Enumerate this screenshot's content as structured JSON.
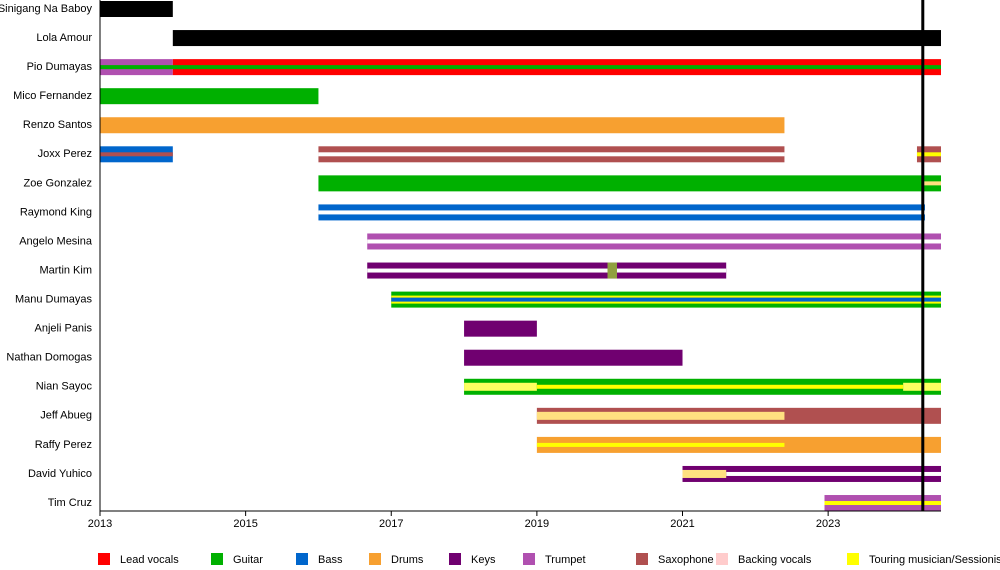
{
  "chart_data": {
    "type": "timeline",
    "xlim": [
      2013,
      2024.55
    ],
    "xticks": [
      2013,
      2015,
      2017,
      2019,
      2021,
      2023
    ],
    "markers": [
      {
        "x": 2024.3,
        "color": "#000000"
      }
    ],
    "members": [
      {
        "name": "Sinigang Na Baboy",
        "segments": [
          {
            "start": 2013,
            "end": 2014,
            "color": "#000000",
            "kind": "bar"
          }
        ]
      },
      {
        "name": "Lola Amour",
        "segments": [
          {
            "start": 2014,
            "end": 2024.55,
            "color": "#000000",
            "kind": "bar"
          }
        ]
      },
      {
        "name": "Pio Dumayas",
        "segments": [
          {
            "start": 2013,
            "end": 2014,
            "color": "#b050b0",
            "kind": "bar"
          },
          {
            "start": 2014,
            "end": 2024.55,
            "color": "#ff0000",
            "kind": "bar"
          },
          {
            "start": 2013,
            "end": 2024.55,
            "color": "#00b000",
            "kind": "line"
          }
        ]
      },
      {
        "name": "Mico Fernandez",
        "segments": [
          {
            "start": 2013,
            "end": 2016,
            "color": "#00b000",
            "kind": "bar"
          }
        ]
      },
      {
        "name": "Renzo Santos",
        "segments": [
          {
            "start": 2013,
            "end": 2022.4,
            "color": "#f7a030",
            "kind": "bar"
          }
        ]
      },
      {
        "name": "Joxx Perez",
        "segments": [
          {
            "start": 2013,
            "end": 2014,
            "color": "#0066cc",
            "kind": "bar"
          },
          {
            "start": 2013,
            "end": 2014,
            "color": "#b05050",
            "kind": "line"
          },
          {
            "start": 2016,
            "end": 2022.4,
            "color": "#b05050",
            "kind": "bar"
          },
          {
            "start": 2016,
            "end": 2022.4,
            "color": "#ffffff",
            "kind": "line"
          },
          {
            "start": 2024.22,
            "end": 2024.55,
            "color": "#b05050",
            "kind": "bar"
          },
          {
            "start": 2024.22,
            "end": 2024.55,
            "color": "#ffff00",
            "kind": "line"
          }
        ]
      },
      {
        "name": "Zoe Gonzalez",
        "segments": [
          {
            "start": 2016,
            "end": 2024.55,
            "color": "#00b000",
            "kind": "bar"
          },
          {
            "start": 2024.3,
            "end": 2024.55,
            "color": "#ffe080",
            "kind": "line"
          }
        ]
      },
      {
        "name": "Raymond King",
        "segments": [
          {
            "start": 2016,
            "end": 2024.33,
            "color": "#0066cc",
            "kind": "bar"
          },
          {
            "start": 2016,
            "end": 2024.33,
            "color": "#ffffff",
            "kind": "line"
          }
        ]
      },
      {
        "name": "Angelo Mesina",
        "segments": [
          {
            "start": 2016.67,
            "end": 2024.55,
            "color": "#b050b0",
            "kind": "bar"
          },
          {
            "start": 2016.67,
            "end": 2024.55,
            "color": "#ffffff",
            "kind": "line"
          }
        ]
      },
      {
        "name": "Martin Kim",
        "segments": [
          {
            "start": 2016.67,
            "end": 2021.6,
            "color": "#700070",
            "kind": "bar"
          },
          {
            "start": 2016.67,
            "end": 2021.6,
            "color": "#ffffff",
            "kind": "line"
          },
          {
            "start": 2019.97,
            "end": 2020.1,
            "color": "#90a040",
            "kind": "bar"
          }
        ]
      },
      {
        "name": "Manu Dumayas",
        "segments": [
          {
            "start": 2017,
            "end": 2024.55,
            "color": "#00b000",
            "kind": "bar"
          },
          {
            "start": 2017,
            "end": 2024.55,
            "color": "#ffff00",
            "kind": "wide"
          },
          {
            "start": 2017,
            "end": 2024.55,
            "color": "#0066cc",
            "kind": "line"
          }
        ]
      },
      {
        "name": "Anjeli Panis",
        "segments": [
          {
            "start": 2018,
            "end": 2019,
            "color": "#700070",
            "kind": "bar"
          }
        ]
      },
      {
        "name": "Nathan Domogas",
        "segments": [
          {
            "start": 2018,
            "end": 2021,
            "color": "#700070",
            "kind": "bar"
          }
        ]
      },
      {
        "name": "Nian Sayoc",
        "segments": [
          {
            "start": 2018,
            "end": 2024.55,
            "color": "#00b000",
            "kind": "bar"
          },
          {
            "start": 2018,
            "end": 2019,
            "color": "#ffff60",
            "kind": "wide"
          },
          {
            "start": 2019,
            "end": 2024.03,
            "color": "#ffff00",
            "kind": "line"
          },
          {
            "start": 2024.03,
            "end": 2024.55,
            "color": "#ffff60",
            "kind": "wide"
          }
        ]
      },
      {
        "name": "Jeff Abueg",
        "segments": [
          {
            "start": 2019,
            "end": 2024.55,
            "color": "#b05050",
            "kind": "bar"
          },
          {
            "start": 2019,
            "end": 2022.4,
            "color": "#ffe080",
            "kind": "wide"
          }
        ]
      },
      {
        "name": "Raffy Perez",
        "segments": [
          {
            "start": 2019,
            "end": 2024.55,
            "color": "#f7a030",
            "kind": "bar"
          },
          {
            "start": 2019,
            "end": 2022.4,
            "color": "#ffff00",
            "kind": "line"
          }
        ]
      },
      {
        "name": "David Yuhico",
        "segments": [
          {
            "start": 2021,
            "end": 2024.55,
            "color": "#700070",
            "kind": "bar"
          },
          {
            "start": 2021.6,
            "end": 2024.55,
            "color": "#ffffff",
            "kind": "line"
          },
          {
            "start": 2021,
            "end": 2021.6,
            "color": "#ffe080",
            "kind": "wide"
          }
        ]
      },
      {
        "name": "Tim Cruz",
        "segments": [
          {
            "start": 2022.95,
            "end": 2024.55,
            "color": "#b050b0",
            "kind": "bar"
          },
          {
            "start": 2022.95,
            "end": 2024.55,
            "color": "#ffff00",
            "kind": "line"
          }
        ]
      }
    ],
    "legend": [
      {
        "name": "Lead vocals",
        "color": "#ff0000"
      },
      {
        "name": "Guitar",
        "color": "#00b000"
      },
      {
        "name": "Bass",
        "color": "#0066cc"
      },
      {
        "name": "Drums",
        "color": "#f7a030"
      },
      {
        "name": "Keys",
        "color": "#700070"
      },
      {
        "name": "Trumpet",
        "color": "#b050b0"
      },
      {
        "name": "Saxophone",
        "color": "#b05050"
      },
      {
        "name": "Backing vocals",
        "color": "#ffcccc"
      },
      {
        "name": "Touring musician/Sessionist",
        "color": "#ffff00"
      }
    ]
  }
}
